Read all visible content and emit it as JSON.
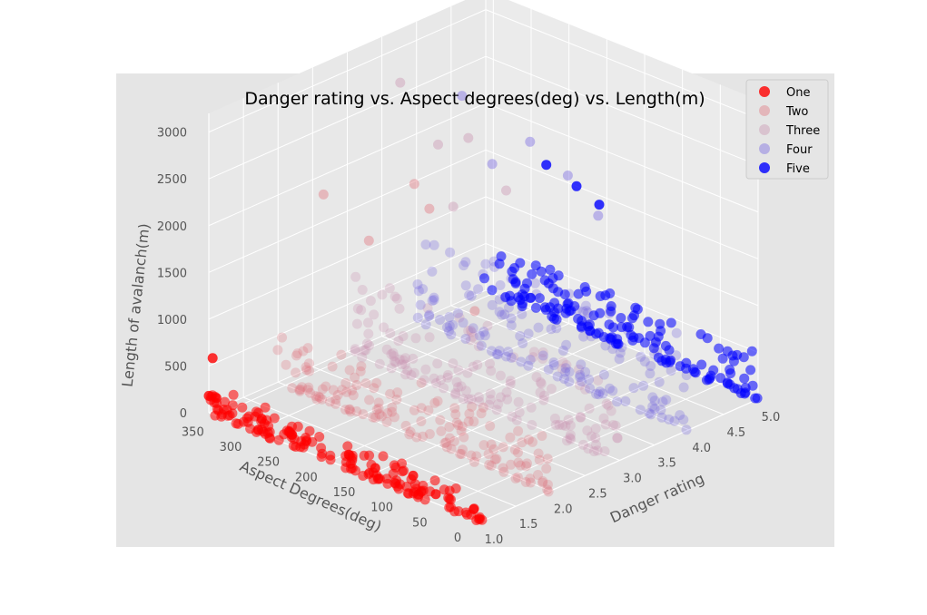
{
  "chart_data": {
    "type": "scatter",
    "projection": "3d",
    "title": "Danger rating vs. Aspect degrees(deg) vs. Length(m)",
    "xlabel": "Danger rating",
    "ylabel": "Aspect Degrees(deg)",
    "zlabel": "Length of avalanch(m)",
    "xlim": [
      1.0,
      5.0
    ],
    "ylim": [
      0,
      360
    ],
    "zlim": [
      0,
      3200
    ],
    "x_ticks": [
      "1.0",
      "1.5",
      "2.0",
      "2.5",
      "3.0",
      "3.5",
      "4.0",
      "4.5",
      "5.0"
    ],
    "y_ticks": [
      "0",
      "50",
      "100",
      "150",
      "200",
      "250",
      "300",
      "350"
    ],
    "z_ticks": [
      "0",
      "500",
      "1000",
      "1500",
      "2000",
      "2500",
      "3000"
    ],
    "grid": true,
    "legend_position": "top-right",
    "series": [
      {
        "name": "One",
        "color": "#ff0000",
        "opacity": 0.8,
        "danger": 1,
        "aspect_range": [
          0,
          360
        ],
        "length_typical_max": 300,
        "length_max": 600,
        "outliers": [
          [
            355,
            600
          ],
          [
            360,
            180
          ],
          [
            290,
            160
          ],
          [
            350,
            190
          ],
          [
            250,
            120
          ],
          [
            175,
            150
          ],
          [
            140,
            120
          ],
          [
            90,
            200
          ],
          [
            60,
            100
          ],
          [
            10,
            100
          ]
        ]
      },
      {
        "name": "Two",
        "color": "#e0707a",
        "opacity": 0.4,
        "danger": 2,
        "aspect_range": [
          0,
          360
        ],
        "length_typical_max": 600,
        "length_max": 2700,
        "outliers": [
          [
            300,
            2200
          ],
          [
            180,
            2700
          ],
          [
            160,
            2500
          ],
          [
            240,
            1900
          ],
          [
            100,
            1600
          ]
        ]
      },
      {
        "name": "Three",
        "color": "#c890b0",
        "opacity": 0.4,
        "danger": 3,
        "aspect_range": [
          0,
          360
        ],
        "length_typical_max": 900,
        "length_max": 3200,
        "outliers": [
          [
            290,
            3100
          ],
          [
            200,
            2800
          ],
          [
            240,
            2600
          ],
          [
            150,
            2400
          ],
          [
            220,
            2000
          ]
        ]
      },
      {
        "name": "Four",
        "color": "#7060e0",
        "opacity": 0.4,
        "danger": 4,
        "aspect_range": [
          0,
          360
        ],
        "length_typical_max": 1000,
        "length_max": 2600,
        "outliers": [
          [
            300,
            2600
          ],
          [
            210,
            2400
          ],
          [
            160,
            2200
          ],
          [
            260,
            2000
          ],
          [
            120,
            1900
          ]
        ]
      },
      {
        "name": "Five",
        "color": "#0000ff",
        "opacity": 0.8,
        "danger": 5,
        "aspect_range": [
          0,
          360
        ],
        "length_typical_max": 500,
        "length_max": 1600,
        "outliers": [
          [
            280,
            1600
          ],
          [
            240,
            1500
          ],
          [
            210,
            1400
          ]
        ]
      }
    ]
  }
}
